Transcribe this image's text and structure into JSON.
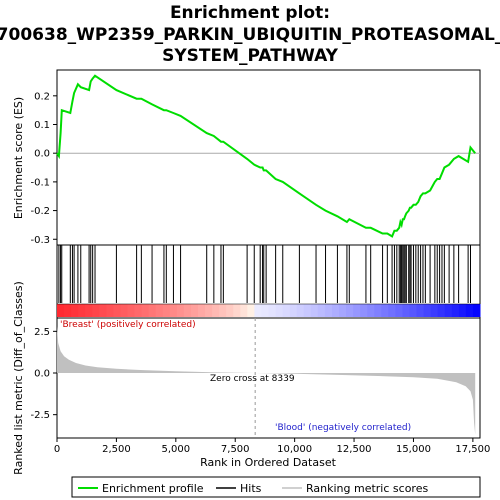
{
  "title_lines": [
    "Enrichment plot:",
    "700638_WP2359_PARKIN_UBIQUITIN_PROTEASOMAL_",
    "SYSTEM_PATHWAY"
  ],
  "colors": {
    "es_line": "#00dd00",
    "hits": "#000000",
    "metric_fill": "#c0c0c0",
    "pos_label": "#cc0000",
    "neg_label": "#2222cc",
    "band_red": "#ff0000",
    "band_blue": "#0000ff"
  },
  "labels": {
    "es_ylabel": "Enrichment score (ES)",
    "metric_ylabel": "Ranked list metric (Diff_of_Classes)",
    "xlabel": "Rank in Ordered Dataset",
    "pos_corr": "'Breast' (positively correlated)",
    "neg_corr": "'Blood' (negatively correlated)",
    "zero_cross": "Zero cross at 8339"
  },
  "legend": [
    {
      "label": "Enrichment profile",
      "icon": "green-line-icon"
    },
    {
      "label": "Hits",
      "icon": "black-line-icon"
    },
    {
      "label": "Ranking metric scores",
      "icon": "gray-line-icon"
    }
  ],
  "chart_data": {
    "type": "line",
    "x_range": [
      0,
      17800
    ],
    "x_ticks": [
      "0",
      "2,500",
      "5,000",
      "7,500",
      "10,000",
      "12,500",
      "15,000",
      "17,500"
    ],
    "x_tick_values": [
      0,
      2500,
      5000,
      7500,
      10000,
      12500,
      15000,
      17500
    ],
    "es_ylim": [
      -0.32,
      0.29
    ],
    "es_y_ticks": [
      "0.2",
      "0.1",
      "0.0",
      "-0.1",
      "-0.2",
      "-0.3"
    ],
    "es_y_tick_values": [
      0.2,
      0.1,
      0.0,
      -0.1,
      -0.2,
      -0.3
    ],
    "metric_ylim": [
      -3.9,
      3.3
    ],
    "metric_y_ticks": [
      "2.5",
      "0.0",
      "-2.5"
    ],
    "metric_y_tick_values": [
      2.5,
      0.0,
      -2.5
    ],
    "zero_cross": 8339,
    "hits": [
      80,
      150,
      200,
      560,
      650,
      720,
      880,
      1000,
      1350,
      1420,
      1500,
      1600,
      2500,
      3350,
      3550,
      4000,
      4500,
      4600,
      4900,
      5200,
      6300,
      6600,
      6900,
      7000,
      8000,
      8300,
      8550,
      8650,
      8700,
      8800,
      9200,
      9500,
      10200,
      10900,
      11300,
      11800,
      12200,
      12300,
      13000,
      13200,
      13700,
      13900,
      14100,
      14200,
      14300,
      14400,
      14450,
      14500,
      14550,
      14600,
      14650,
      14700,
      14800,
      14850,
      14900,
      15000,
      15100,
      15200,
      15300,
      15400,
      15500,
      15700,
      15900,
      16000,
      16100,
      16200,
      16300,
      16500,
      16700,
      16900,
      17300,
      17400
    ],
    "es_profile": {
      "x": [
        0,
        80,
        150,
        200,
        560,
        650,
        720,
        880,
        1000,
        1350,
        1420,
        1500,
        1600,
        2500,
        3350,
        3550,
        4000,
        4500,
        4600,
        4900,
        5200,
        6300,
        6600,
        6900,
        7000,
        8000,
        8300,
        8550,
        8650,
        8700,
        8800,
        9200,
        9500,
        10200,
        10900,
        11300,
        11800,
        12200,
        12300,
        13000,
        13200,
        13700,
        13900,
        14100,
        14200,
        14300,
        14400,
        14450,
        14500,
        14550,
        14600,
        14650,
        14700,
        14800,
        14850,
        14900,
        15000,
        15100,
        15200,
        15300,
        15400,
        15500,
        15700,
        15900,
        16000,
        16100,
        16200,
        16300,
        16500,
        16700,
        16900,
        17300,
        17400,
        17600
      ],
      "y": [
        0.0,
        -0.01,
        0.07,
        0.15,
        0.14,
        0.18,
        0.21,
        0.24,
        0.23,
        0.22,
        0.25,
        0.26,
        0.27,
        0.22,
        0.19,
        0.19,
        0.17,
        0.15,
        0.15,
        0.14,
        0.13,
        0.07,
        0.06,
        0.04,
        0.04,
        -0.02,
        -0.04,
        -0.05,
        -0.05,
        -0.06,
        -0.06,
        -0.09,
        -0.1,
        -0.14,
        -0.18,
        -0.2,
        -0.22,
        -0.24,
        -0.23,
        -0.26,
        -0.26,
        -0.28,
        -0.28,
        -0.29,
        -0.27,
        -0.27,
        -0.26,
        -0.24,
        -0.25,
        -0.23,
        -0.23,
        -0.22,
        -0.21,
        -0.2,
        -0.19,
        -0.19,
        -0.18,
        -0.18,
        -0.17,
        -0.15,
        -0.14,
        -0.14,
        -0.13,
        -0.1,
        -0.09,
        -0.09,
        -0.07,
        -0.05,
        -0.04,
        -0.02,
        -0.01,
        -0.03,
        0.02,
        0.0
      ]
    },
    "metric_profile": {
      "x": [
        0,
        50,
        150,
        300,
        500,
        800,
        1200,
        1700,
        2500,
        3500,
        5000,
        6500,
        8339,
        10000,
        12000,
        13500,
        15000,
        16000,
        16800,
        17200,
        17400,
        17500,
        17550,
        17600
      ],
      "y": [
        2.8,
        1.8,
        1.3,
        1.0,
        0.8,
        0.6,
        0.45,
        0.35,
        0.25,
        0.18,
        0.1,
        0.05,
        0.0,
        -0.05,
        -0.12,
        -0.18,
        -0.25,
        -0.35,
        -0.55,
        -0.8,
        -1.1,
        -1.6,
        -3.0,
        -3.7
      ]
    }
  }
}
